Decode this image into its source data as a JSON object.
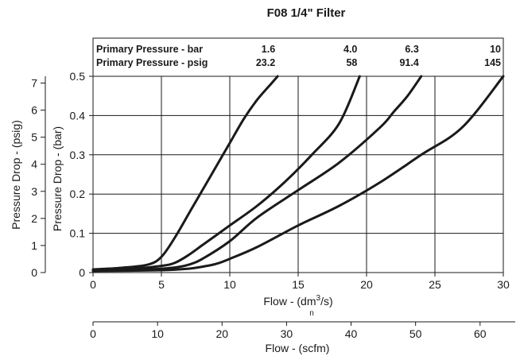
{
  "chart_data": {
    "type": "line",
    "title": "F08 1/4\" Filter",
    "xlabel": "Flow - (dm³/s)",
    "xlabel_parts": {
      "base": "Flow - (dm",
      "sup": "3",
      "end": "/s)",
      "sub": "n"
    },
    "xlim": [
      0,
      30
    ],
    "x_ticks": [
      0,
      5,
      10,
      15,
      20,
      25,
      30
    ],
    "x_tick_labels": [
      "0",
      "5",
      "10",
      "15",
      "20",
      "25",
      "30"
    ],
    "ylabel": "Pressure Drop - (bar)",
    "ylim": [
      0,
      0.5
    ],
    "y_ticks": [
      0,
      0.1,
      0.2,
      0.3,
      0.4,
      0.5
    ],
    "y_tick_labels": [
      "0",
      "0.1",
      "0.2",
      "0.3",
      "0.4",
      "0.5"
    ],
    "grid": true,
    "secondary_y": {
      "label": "Pressure Drop - (psig)",
      "lim": [
        0,
        7.25
      ],
      "ticks": [
        0,
        1,
        2,
        3,
        4,
        5,
        6,
        7
      ],
      "tick_labels": [
        "0",
        "1",
        "2",
        "3",
        "4",
        "5",
        "6",
        "7"
      ]
    },
    "secondary_x": {
      "label": "Flow - (scfm)",
      "lim": [
        0,
        63.6
      ],
      "ticks": [
        0,
        10,
        20,
        30,
        40,
        50,
        60
      ],
      "tick_labels": [
        "0",
        "10",
        "20",
        "30",
        "40",
        "50",
        "60"
      ]
    },
    "header": {
      "row1_label": "Primary Pressure - bar",
      "row2_label": "Primary Pressure - psig",
      "columns": [
        {
          "bar": "1.6",
          "psig": "23.2",
          "x": 13.5
        },
        {
          "bar": "4.0",
          "psig": "58",
          "x": 19.5
        },
        {
          "bar": "6.3",
          "psig": "91.4",
          "x": 24.0
        },
        {
          "bar": "10",
          "psig": "145",
          "x": 30.0
        }
      ]
    },
    "series": [
      {
        "values": [
          [
            0,
            0.008
          ],
          [
            2,
            0.012
          ],
          [
            4,
            0.02
          ],
          [
            5,
            0.04
          ],
          [
            6,
            0.09
          ],
          [
            7,
            0.15
          ],
          [
            8,
            0.21
          ],
          [
            9,
            0.27
          ],
          [
            10,
            0.33
          ],
          [
            11,
            0.39
          ],
          [
            12,
            0.44
          ],
          [
            13,
            0.48
          ],
          [
            13.5,
            0.5
          ]
        ]
      },
      {
        "values": [
          [
            0,
            0.006
          ],
          [
            3,
            0.01
          ],
          [
            5,
            0.017
          ],
          [
            6,
            0.025
          ],
          [
            7,
            0.045
          ],
          [
            8,
            0.07
          ],
          [
            9,
            0.095
          ],
          [
            10,
            0.12
          ],
          [
            12,
            0.17
          ],
          [
            14,
            0.23
          ],
          [
            16,
            0.3
          ],
          [
            18,
            0.38
          ],
          [
            19.5,
            0.5
          ]
        ]
      },
      {
        "values": [
          [
            0,
            0.005
          ],
          [
            4,
            0.008
          ],
          [
            6,
            0.013
          ],
          [
            7,
            0.02
          ],
          [
            8,
            0.035
          ],
          [
            10,
            0.08
          ],
          [
            12,
            0.14
          ],
          [
            15,
            0.21
          ],
          [
            18,
            0.28
          ],
          [
            21,
            0.37
          ],
          [
            22,
            0.41
          ],
          [
            23,
            0.45
          ],
          [
            24,
            0.5
          ]
        ]
      },
      {
        "values": [
          [
            0,
            0.004
          ],
          [
            5,
            0.006
          ],
          [
            7,
            0.01
          ],
          [
            8,
            0.015
          ],
          [
            9,
            0.022
          ],
          [
            10,
            0.035
          ],
          [
            12,
            0.065
          ],
          [
            15,
            0.12
          ],
          [
            18,
            0.17
          ],
          [
            21,
            0.23
          ],
          [
            24,
            0.3
          ],
          [
            27,
            0.37
          ],
          [
            30,
            0.5
          ]
        ]
      }
    ]
  }
}
